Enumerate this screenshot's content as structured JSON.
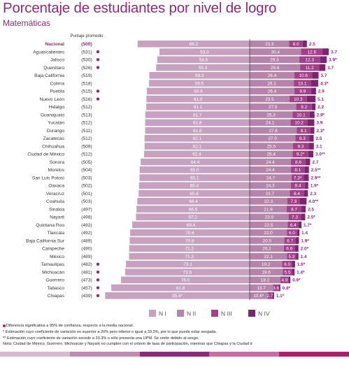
{
  "title": "Porcentaje de estudiantes por nivel de logro",
  "subtitle": "Matemáticas",
  "score_header": "Puntaje promedio",
  "colors": {
    "n1": "#c7a2c0",
    "n2": "#b584aa",
    "n3": "#a0418a",
    "n4": "#7b2470",
    "accent": "#8c2b7c"
  },
  "notes": [
    {
      "text": "Diferencia significativa a 95% de confianza, respecto a la media nacional.",
      "dot": true
    },
    {
      "text": "* Estimación cuyo coeficiente de variación es superior a 20% pero inferior o igual a 33.3%, por lo que puede estar sesgada.",
      "dot": false
    },
    {
      "text": "** Estimación cuyo coeficiente de variación excede a 33.3% o sólo presenta una UPM. Se omite debido al sesgo.",
      "dot": false
    },
    {
      "text": "Nota: Ciudad de México, Guerrero, Michoacán y Nayarit no cumplen con el criterio de tasa de participación, mientras que Chiapas y la Ciudad d",
      "dot": false
    }
  ],
  "chart_data": {
    "type": "bar",
    "orientation": "horizontal",
    "stacked": "diverging",
    "legend": [
      "N I",
      "N II",
      "N III",
      "N IV"
    ],
    "legend_position": "bottom",
    "rows": [
      {
        "name": "Nacional",
        "score": "(500)",
        "n1": "66.2",
        "n2": "23.3",
        "n3": "8.0",
        "n4": "2.5",
        "dot": false,
        "bold": true
      },
      {
        "name": "Aguascalientes",
        "score": "(531)",
        "n1": "53.3",
        "n2": "30.4",
        "n3": "12.6",
        "n4": "3.7",
        "dot": true
      },
      {
        "name": "Jalisco",
        "score": "(530)",
        "n1": "54.6",
        "n2": "29.3",
        "n3": "12.3",
        "n4": "3.9*",
        "dot": true
      },
      {
        "name": "Querétaro",
        "score": "(526)",
        "n1": "55.3",
        "n2": "29.8",
        "n3": "11.2",
        "n4": "3.7",
        "dot": true
      },
      {
        "name": "Baja California",
        "score": "(519)",
        "n1": "59.3",
        "n2": "26.4",
        "n3": "10.6",
        "n4": "3.7",
        "dot": false
      },
      {
        "name": "Colima",
        "score": "(518)",
        "n1": "59.5",
        "n2": "26.1",
        "n3": "10.1",
        "n4": "4.3*",
        "dot": false
      },
      {
        "name": "Puebla",
        "score": "(515)",
        "n1": "60.8",
        "n2": "26.4",
        "n3": "9.9",
        "n4": "2.9",
        "dot": true
      },
      {
        "name": "Nuevo León",
        "score": "(516)",
        "n1": "61.0",
        "n2": "23.5",
        "n3": "10.3",
        "n4": "5.1",
        "dot": true
      },
      {
        "name": "Hidalgo",
        "score": "(512)",
        "n1": "61.1",
        "n2": "27.5",
        "n3": "9.2",
        "n4": "2.2",
        "dot": false
      },
      {
        "name": "Guanajuato",
        "score": "(513)",
        "n1": "61.7",
        "n2": "25.3",
        "n3": "10.1",
        "n4": "2.9*",
        "dot": false
      },
      {
        "name": "Yucatán",
        "score": "(512)",
        "n1": "61.8",
        "n2": "24.1",
        "n3": "10.2",
        "n4": "3.9",
        "dot": false
      },
      {
        "name": "Durango",
        "score": "(511)",
        "n1": "61.8",
        "n2": "27.8",
        "n3": "8.1",
        "n4": "2.3*",
        "dot": false
      },
      {
        "name": "Zacatecas",
        "score": "(512)",
        "n1": "62.1",
        "n2": "27.0",
        "n3": "8.3",
        "n4": "2.5",
        "dot": false
      },
      {
        "name": "Chihuahua",
        "score": "(509)",
        "n1": "62.1",
        "n2": "25.5",
        "n3": "9.3",
        "n4": "3.1",
        "dot": false
      },
      {
        "name": "Ciudad de México",
        "score": "(512)",
        "n1": "62.4",
        "n2": "25.4",
        "n3": "9.2*",
        "n4": "3.0**",
        "dot": false
      },
      {
        "name": "Sonora",
        "score": "(505)",
        "n1": "64.4",
        "n2": "24.4",
        "n3": "8.6",
        "n4": "2.7",
        "dot": false
      },
      {
        "name": "Morelos",
        "score": "(504)",
        "n1": "65.0",
        "n2": "24.4",
        "n3": "8.1",
        "n4": "2.5**",
        "dot": false
      },
      {
        "name": "San Luis Potosí",
        "score": "(503)",
        "n1": "65.1",
        "n2": "24.7",
        "n3": "7.3*",
        "n4": "2.9**",
        "dot": false
      },
      {
        "name": "Oaxaca",
        "score": "(502)",
        "n1": "65.4",
        "n2": "24.3",
        "n3": "8.4",
        "n4": "1.9*",
        "dot": false
      },
      {
        "name": "Veracruz",
        "score": "(501)",
        "n1": "65.6",
        "n2": "23.7",
        "n3": "8.4",
        "n4": "2.3",
        "dot": false
      },
      {
        "name": "Coahuila",
        "score": "(503)",
        "n1": "66.4",
        "n2": "22.3",
        "n3": "7.3",
        "n4": "4.0**",
        "dot": false
      },
      {
        "name": "Sinaloa",
        "score": "(497)",
        "n1": "66.9",
        "n2": "21.9",
        "n3": "8.7",
        "n4": "2.5",
        "dot": false
      },
      {
        "name": "Nayarit",
        "score": "(498)",
        "n1": "67.2",
        "n2": "23.0",
        "n3": "7.3",
        "n4": "2.5*",
        "dot": false
      },
      {
        "name": "Quintana Roo",
        "score": "(492)",
        "n1": "69.4",
        "n2": "22.5",
        "n3": "6.4",
        "n4": "1.7*",
        "dot": false
      },
      {
        "name": "Tlaxcala",
        "score": "(492)",
        "n1": "70.6",
        "n2": "22.0",
        "n3": "6.0",
        "n4": "1.4",
        "dot": false
      },
      {
        "name": "Baja California Sur",
        "score": "(489)",
        "n1": "70.9",
        "n2": "20.5",
        "n3": "6.7",
        "n4": "1.9*",
        "dot": false
      },
      {
        "name": "Campeche",
        "score": "(490)",
        "n1": "71.2",
        "n2": "20.2",
        "n3": "6.6",
        "n4": "2.0*",
        "dot": false
      },
      {
        "name": "México",
        "score": "(489)",
        "n1": "71.3",
        "n2": "22.1",
        "n3": "5.3",
        "n4": "1.4",
        "dot": false
      },
      {
        "name": "Tamaulipas",
        "score": "(482)",
        "n1": "73.1",
        "n2": "19.2",
        "n3": "6.0",
        "n4": "1.6*",
        "dot": true
      },
      {
        "name": "Michoacán",
        "score": "(481)",
        "n1": "73.6",
        "n2": "19.6",
        "n3": "5.5",
        "n4": "1.4*",
        "dot": true
      },
      {
        "name": "Guerrero",
        "score": "(473)",
        "n1": "76.0",
        "n2": "18.2",
        "n3": "4.9",
        "n4": "0.9*",
        "dot": true
      },
      {
        "name": "Tabasco",
        "score": "(457)",
        "n1": "81.8",
        "n2": "13.7",
        "n3": "3.6",
        "n4": "0.8*",
        "dot": true
      },
      {
        "name": "Chiapas",
        "score": "(439)",
        "n1": "85.4*",
        "n2": "10.6*",
        "n3": "2.7",
        "n4": "1.1*",
        "dot": true
      }
    ]
  }
}
